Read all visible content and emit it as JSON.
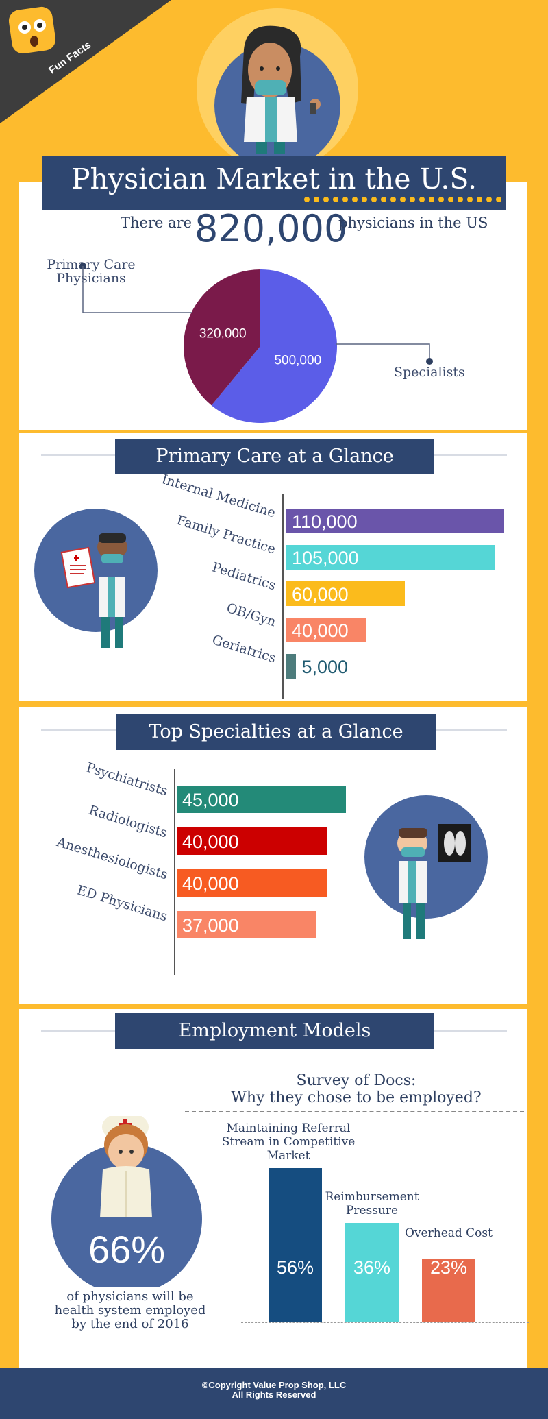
{
  "badge": {
    "label": "Fun Facts"
  },
  "header": {
    "title": "Physician Market in the U.S."
  },
  "total": {
    "prefix": "There are",
    "value": "820,000",
    "suffix": "physicians in the US"
  },
  "colors": {
    "background": "#fdbb2e",
    "navy": "#2e4670",
    "primary_care": "#7a1a4a",
    "specialists": "#5b5de8"
  },
  "chart_data": [
    {
      "type": "pie",
      "title": "",
      "slices": [
        {
          "label": "Primary Care Physicians",
          "value": 320000,
          "value_label": "320,000",
          "color": "#7a1a4a"
        },
        {
          "label": "Specialists",
          "value": 500000,
          "value_label": "500,000",
          "color": "#5b5de8"
        }
      ]
    },
    {
      "type": "bar",
      "orientation": "horizontal",
      "title": "Primary Care at a Glance",
      "categories": [
        "Internal Medicine",
        "Family Practice",
        "Pediatrics",
        "OB/Gyn",
        "Geriatrics"
      ],
      "values": [
        110000,
        105000,
        60000,
        40000,
        5000
      ],
      "value_labels": [
        "110,000",
        "105,000",
        "60,000",
        "40,000",
        "5,000"
      ],
      "colors": [
        "#6a55aa",
        "#55d6d6",
        "#fbbb1c",
        "#f98566",
        "#4d7c7c"
      ]
    },
    {
      "type": "bar",
      "orientation": "horizontal",
      "title": "Top Specialties at a Glance",
      "categories": [
        "Psychiatrists",
        "Radiologists",
        "Anesthesiologists",
        "ED Physicians"
      ],
      "values": [
        45000,
        40000,
        40000,
        37000
      ],
      "value_labels": [
        "45,000",
        "40,000",
        "40,000",
        "37,000"
      ],
      "colors": [
        "#238a78",
        "#cc0000",
        "#f75b22",
        "#f98566"
      ]
    },
    {
      "type": "bar",
      "orientation": "vertical",
      "title": "Survey of Docs: Why they chose to be employed?",
      "categories": [
        "Maintaining Referral Stream in Competitive Market",
        "Reimbursement Pressure",
        "Overhead Cost"
      ],
      "values": [
        56,
        36,
        23
      ],
      "value_labels": [
        "56%",
        "36%",
        "23%"
      ],
      "colors": [
        "#154d80",
        "#55d6d6",
        "#e86a4c"
      ]
    }
  ],
  "pie_labels": {
    "primary": "Primary Care Physicians",
    "specialists": "Specialists"
  },
  "primary_section": {
    "title": "Primary Care at a Glance"
  },
  "specialty_section": {
    "title": "Top Specialties at a Glance"
  },
  "employment": {
    "title": "Employment Models",
    "survey_title_line1": "Survey of Docs:",
    "survey_title_line2": "Why they chose to be employed?",
    "stat": "66%",
    "stat_caption": "of physicians will be health system employed by the end of 2016"
  },
  "footer": {
    "line1": "©Copyright Value Prop Shop, LLC",
    "line2": "All Rights Reserved"
  }
}
